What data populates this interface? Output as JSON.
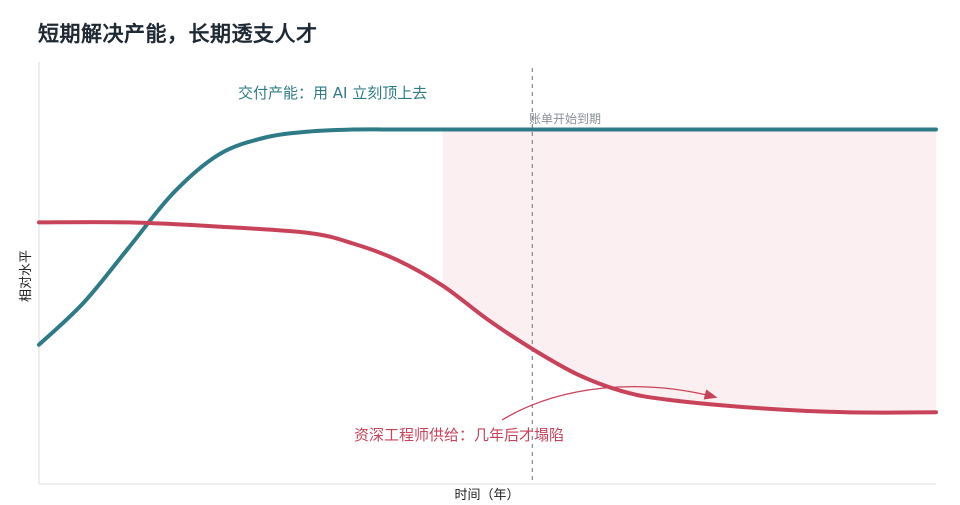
{
  "title": "短期解决产能，长期透支人才",
  "chart_data": {
    "type": "line",
    "title": "短期解决产能，长期透支人才",
    "xlabel": "时间（年）",
    "ylabel": "相对水平",
    "ylim": [
      0,
      1
    ],
    "grid": false,
    "series": [
      {
        "name": "交付产能：用 AI 立刻顶上去",
        "color": "#2e7b87",
        "points": [
          [
            0,
            0.33
          ],
          [
            0.05,
            0.43
          ],
          [
            0.1,
            0.56
          ],
          [
            0.15,
            0.69
          ],
          [
            0.2,
            0.78
          ],
          [
            0.25,
            0.82
          ],
          [
            0.3,
            0.835
          ],
          [
            0.35,
            0.84
          ],
          [
            0.4,
            0.84
          ],
          [
            0.5,
            0.84
          ],
          [
            0.6,
            0.84
          ],
          [
            0.7,
            0.84
          ],
          [
            0.8,
            0.84
          ],
          [
            0.9,
            0.84
          ],
          [
            1.0,
            0.84
          ]
        ]
      },
      {
        "name": "资深工程师供给：几年后才塌陷",
        "color": "#c8435a",
        "points": [
          [
            0,
            0.62
          ],
          [
            0.1,
            0.62
          ],
          [
            0.2,
            0.61
          ],
          [
            0.3,
            0.595
          ],
          [
            0.35,
            0.57
          ],
          [
            0.4,
            0.53
          ],
          [
            0.45,
            0.47
          ],
          [
            0.5,
            0.39
          ],
          [
            0.55,
            0.32
          ],
          [
            0.6,
            0.26
          ],
          [
            0.65,
            0.22
          ],
          [
            0.7,
            0.2
          ],
          [
            0.8,
            0.18
          ],
          [
            0.9,
            0.17
          ],
          [
            1.0,
            0.17
          ]
        ]
      }
    ],
    "annotations": {
      "capacity": "交付产能：用 AI 立刻顶上去",
      "supply": "资深工程师供给：几年后才塌陷",
      "bill_due": "账单开始到期"
    },
    "bill_due_x": 0.55,
    "gap_start_x": 0.45,
    "colors": {
      "teal": "#2e7b87",
      "red": "#c8435a",
      "gap": "#fbeff1",
      "marker": "#8a8f96"
    }
  }
}
